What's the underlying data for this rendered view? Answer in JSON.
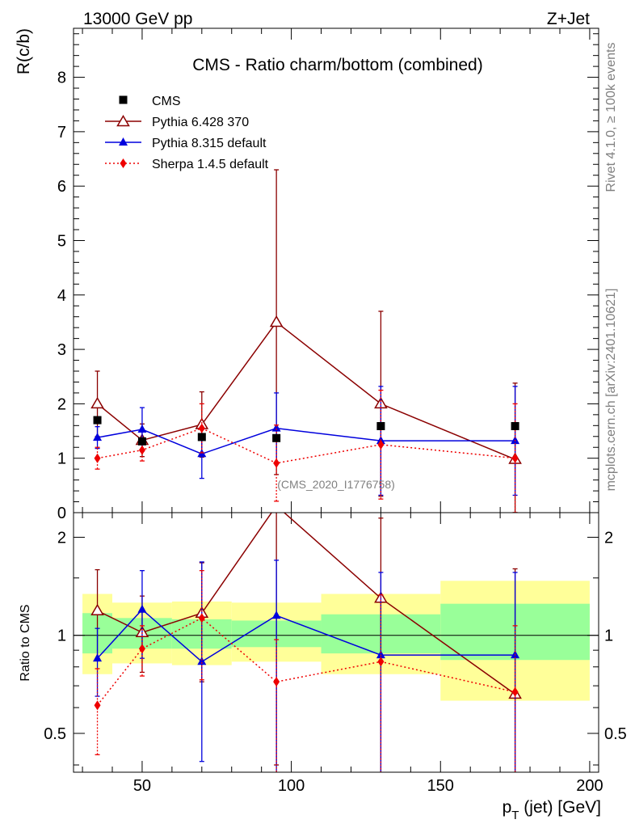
{
  "header": {
    "energy_label": "13000 GeV pp",
    "process_label": "Z+Jet"
  },
  "side_text": {
    "rivet": "Rivet 4.1.0, ≥ 100k events",
    "mcplots": "mcplots.cern.ch [arXiv:2401.10621]"
  },
  "colors": {
    "cms": "#000000",
    "pythia6": "#8b0000",
    "pythia8": "#0000dd",
    "sherpa": "#ee0000",
    "band_outer": "#ffff99",
    "band_inner": "#99ff99"
  },
  "chart_data": [
    {
      "type": "scatter",
      "title": "CMS - Ratio charm/bottom (combined)",
      "watermark": "(CMS_2020_I1776758)",
      "ylabel": "R(c/b)",
      "xlim": [
        27,
        203
      ],
      "ylim": [
        0,
        8.9
      ],
      "yticks": [
        0,
        1,
        2,
        3,
        4,
        5,
        6,
        7,
        8
      ],
      "legend_position": "top-left",
      "series": [
        {
          "name": "CMS",
          "marker": "square",
          "x": [
            35,
            50,
            70,
            95,
            130,
            175
          ],
          "y": [
            1.7,
            1.31,
            1.39,
            1.37,
            1.59,
            1.59
          ]
        },
        {
          "name": "Pythia 6.428 370",
          "marker": "open-triangle",
          "line": "solid",
          "x": [
            35,
            50,
            70,
            95,
            130,
            175
          ],
          "y": [
            2.0,
            1.33,
            1.62,
            3.5,
            2.0,
            0.98
          ],
          "err_lo": [
            0.6,
            0.3,
            0.6,
            2.8,
            1.7,
            1.0
          ],
          "err_hi": [
            0.6,
            0.3,
            0.6,
            2.8,
            1.7,
            1.4
          ]
        },
        {
          "name": "Pythia 8.315 default",
          "marker": "filled-triangle",
          "line": "solid",
          "x": [
            35,
            50,
            70,
            95,
            130,
            175
          ],
          "y": [
            1.38,
            1.53,
            1.08,
            1.55,
            1.32,
            1.32
          ],
          "err_lo": [
            0.2,
            0.4,
            0.45,
            0.65,
            1.0,
            1.0
          ],
          "err_hi": [
            0.2,
            0.4,
            0.45,
            0.65,
            1.0,
            1.0
          ]
        },
        {
          "name": "Sherpa 1.4.5 default",
          "marker": "diamond",
          "line": "dotted",
          "x": [
            35,
            50,
            70,
            95,
            130,
            175
          ],
          "y": [
            1.0,
            1.15,
            1.55,
            0.91,
            1.25,
            1.0
          ],
          "err_lo": [
            0.2,
            0.2,
            0.45,
            0.7,
            1.0,
            1.0
          ],
          "err_hi": [
            0.2,
            0.2,
            0.45,
            0.7,
            1.0,
            1.0
          ]
        }
      ]
    },
    {
      "type": "scatter",
      "xlabel": "p_T (jet) [GeV]",
      "ylabel": "Ratio to CMS",
      "xlim": [
        27,
        203
      ],
      "ylim": [
        0.38,
        2.38
      ],
      "yscale": "log",
      "xticks": [
        50,
        100,
        150,
        200
      ],
      "yticks": [
        0.5,
        1,
        2
      ],
      "reference_line": 1,
      "bands": [
        {
          "x_lo": 30,
          "x_hi": 40,
          "outer": [
            0.76,
            1.34
          ],
          "inner": [
            0.88,
            1.17
          ]
        },
        {
          "x_lo": 40,
          "x_hi": 60,
          "outer": [
            0.82,
            1.26
          ],
          "inner": [
            0.91,
            1.13
          ]
        },
        {
          "x_lo": 60,
          "x_hi": 80,
          "outer": [
            0.81,
            1.27
          ],
          "inner": [
            0.91,
            1.12
          ]
        },
        {
          "x_lo": 80,
          "x_hi": 110,
          "outer": [
            0.83,
            1.26
          ],
          "inner": [
            0.92,
            1.11
          ]
        },
        {
          "x_lo": 110,
          "x_hi": 150,
          "outer": [
            0.76,
            1.34
          ],
          "inner": [
            0.88,
            1.16
          ]
        },
        {
          "x_lo": 150,
          "x_hi": 200,
          "outer": [
            0.63,
            1.47
          ],
          "inner": [
            0.84,
            1.25
          ]
        }
      ],
      "series": [
        {
          "name": "Pythia 6.428 370",
          "x": [
            35,
            50,
            70,
            95,
            130,
            175
          ],
          "y": [
            1.19,
            1.02,
            1.17,
            2.5,
            1.3,
            0.66
          ],
          "err_lo": [
            0.35,
            0.25,
            0.45,
            2.1,
            1.0,
            0.35
          ],
          "err_hi": [
            0.4,
            0.3,
            0.5,
            0.0,
            0.99,
            0.94
          ]
        },
        {
          "name": "Pythia 8.315 default",
          "x": [
            35,
            50,
            70,
            95,
            130,
            175
          ],
          "y": [
            0.85,
            1.2,
            0.83,
            1.15,
            0.87,
            0.87
          ],
          "err_lo": [
            0.2,
            0.35,
            0.42,
            0.8,
            0.6,
            0.6
          ],
          "err_hi": [
            0.2,
            0.38,
            0.85,
            0.55,
            0.69,
            0.69
          ]
        },
        {
          "name": "Sherpa 1.4.5 default",
          "x": [
            35,
            50,
            70,
            95,
            130,
            175
          ],
          "y": [
            0.61,
            0.91,
            1.13,
            0.72,
            0.83,
            0.67
          ],
          "err_lo": [
            0.18,
            0.16,
            0.4,
            0.5,
            0.5,
            0.4
          ],
          "err_hi": [
            0.18,
            0.16,
            0.45,
            0.25,
            0.5,
            0.4
          ]
        }
      ]
    }
  ]
}
